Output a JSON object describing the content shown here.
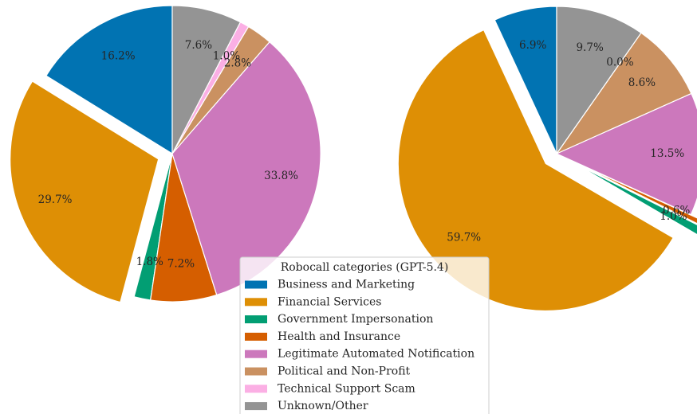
{
  "chart_data": [
    {
      "type": "pie",
      "legend_title": "Robocall categories (GPT-5.4)",
      "categories": [
        "Business and Marketing",
        "Financial Services",
        "Government Impersonation",
        "Health and Insurance",
        "Legitimate Automated Notification",
        "Political and Non-Profit",
        "Technical Support Scam",
        "Unknown/Other"
      ],
      "values": [
        16.2,
        29.7,
        1.8,
        7.2,
        33.8,
        2.8,
        1.0,
        7.6
      ],
      "value_labels": [
        "16.2%",
        "29.7%",
        "1.8%",
        "7.2%",
        "33.8%",
        "2.8%",
        "1.0%",
        "7.6%"
      ],
      "colors": [
        "#0173b2",
        "#de8f05",
        "#029e73",
        "#d55e00",
        "#cc78bc",
        "#ca9161",
        "#fbafe4",
        "#949494"
      ],
      "explode": [
        0,
        0.1,
        0,
        0,
        0,
        0,
        0,
        0
      ]
    },
    {
      "type": "pie",
      "categories": [
        "Business and Marketing",
        "Financial Services",
        "Government Impersonation",
        "Health and Insurance",
        "Legitimate Automated Notification",
        "Political and Non-Profit",
        "Technical Support Scam",
        "Unknown/Other"
      ],
      "values": [
        6.9,
        59.7,
        1.0,
        0.6,
        13.5,
        8.6,
        0.0,
        9.7
      ],
      "value_labels": [
        "6.9%",
        "59.7%",
        "1.0%",
        "0.6%",
        "13.5%",
        "8.6%",
        "0.0%",
        "9.7%"
      ],
      "colors": [
        "#0173b2",
        "#de8f05",
        "#029e73",
        "#d55e00",
        "#cc78bc",
        "#ca9161",
        "#fbafe4",
        "#949494"
      ],
      "explode": [
        0,
        0.1,
        0.15,
        0.15,
        0,
        0,
        0,
        0
      ]
    }
  ]
}
